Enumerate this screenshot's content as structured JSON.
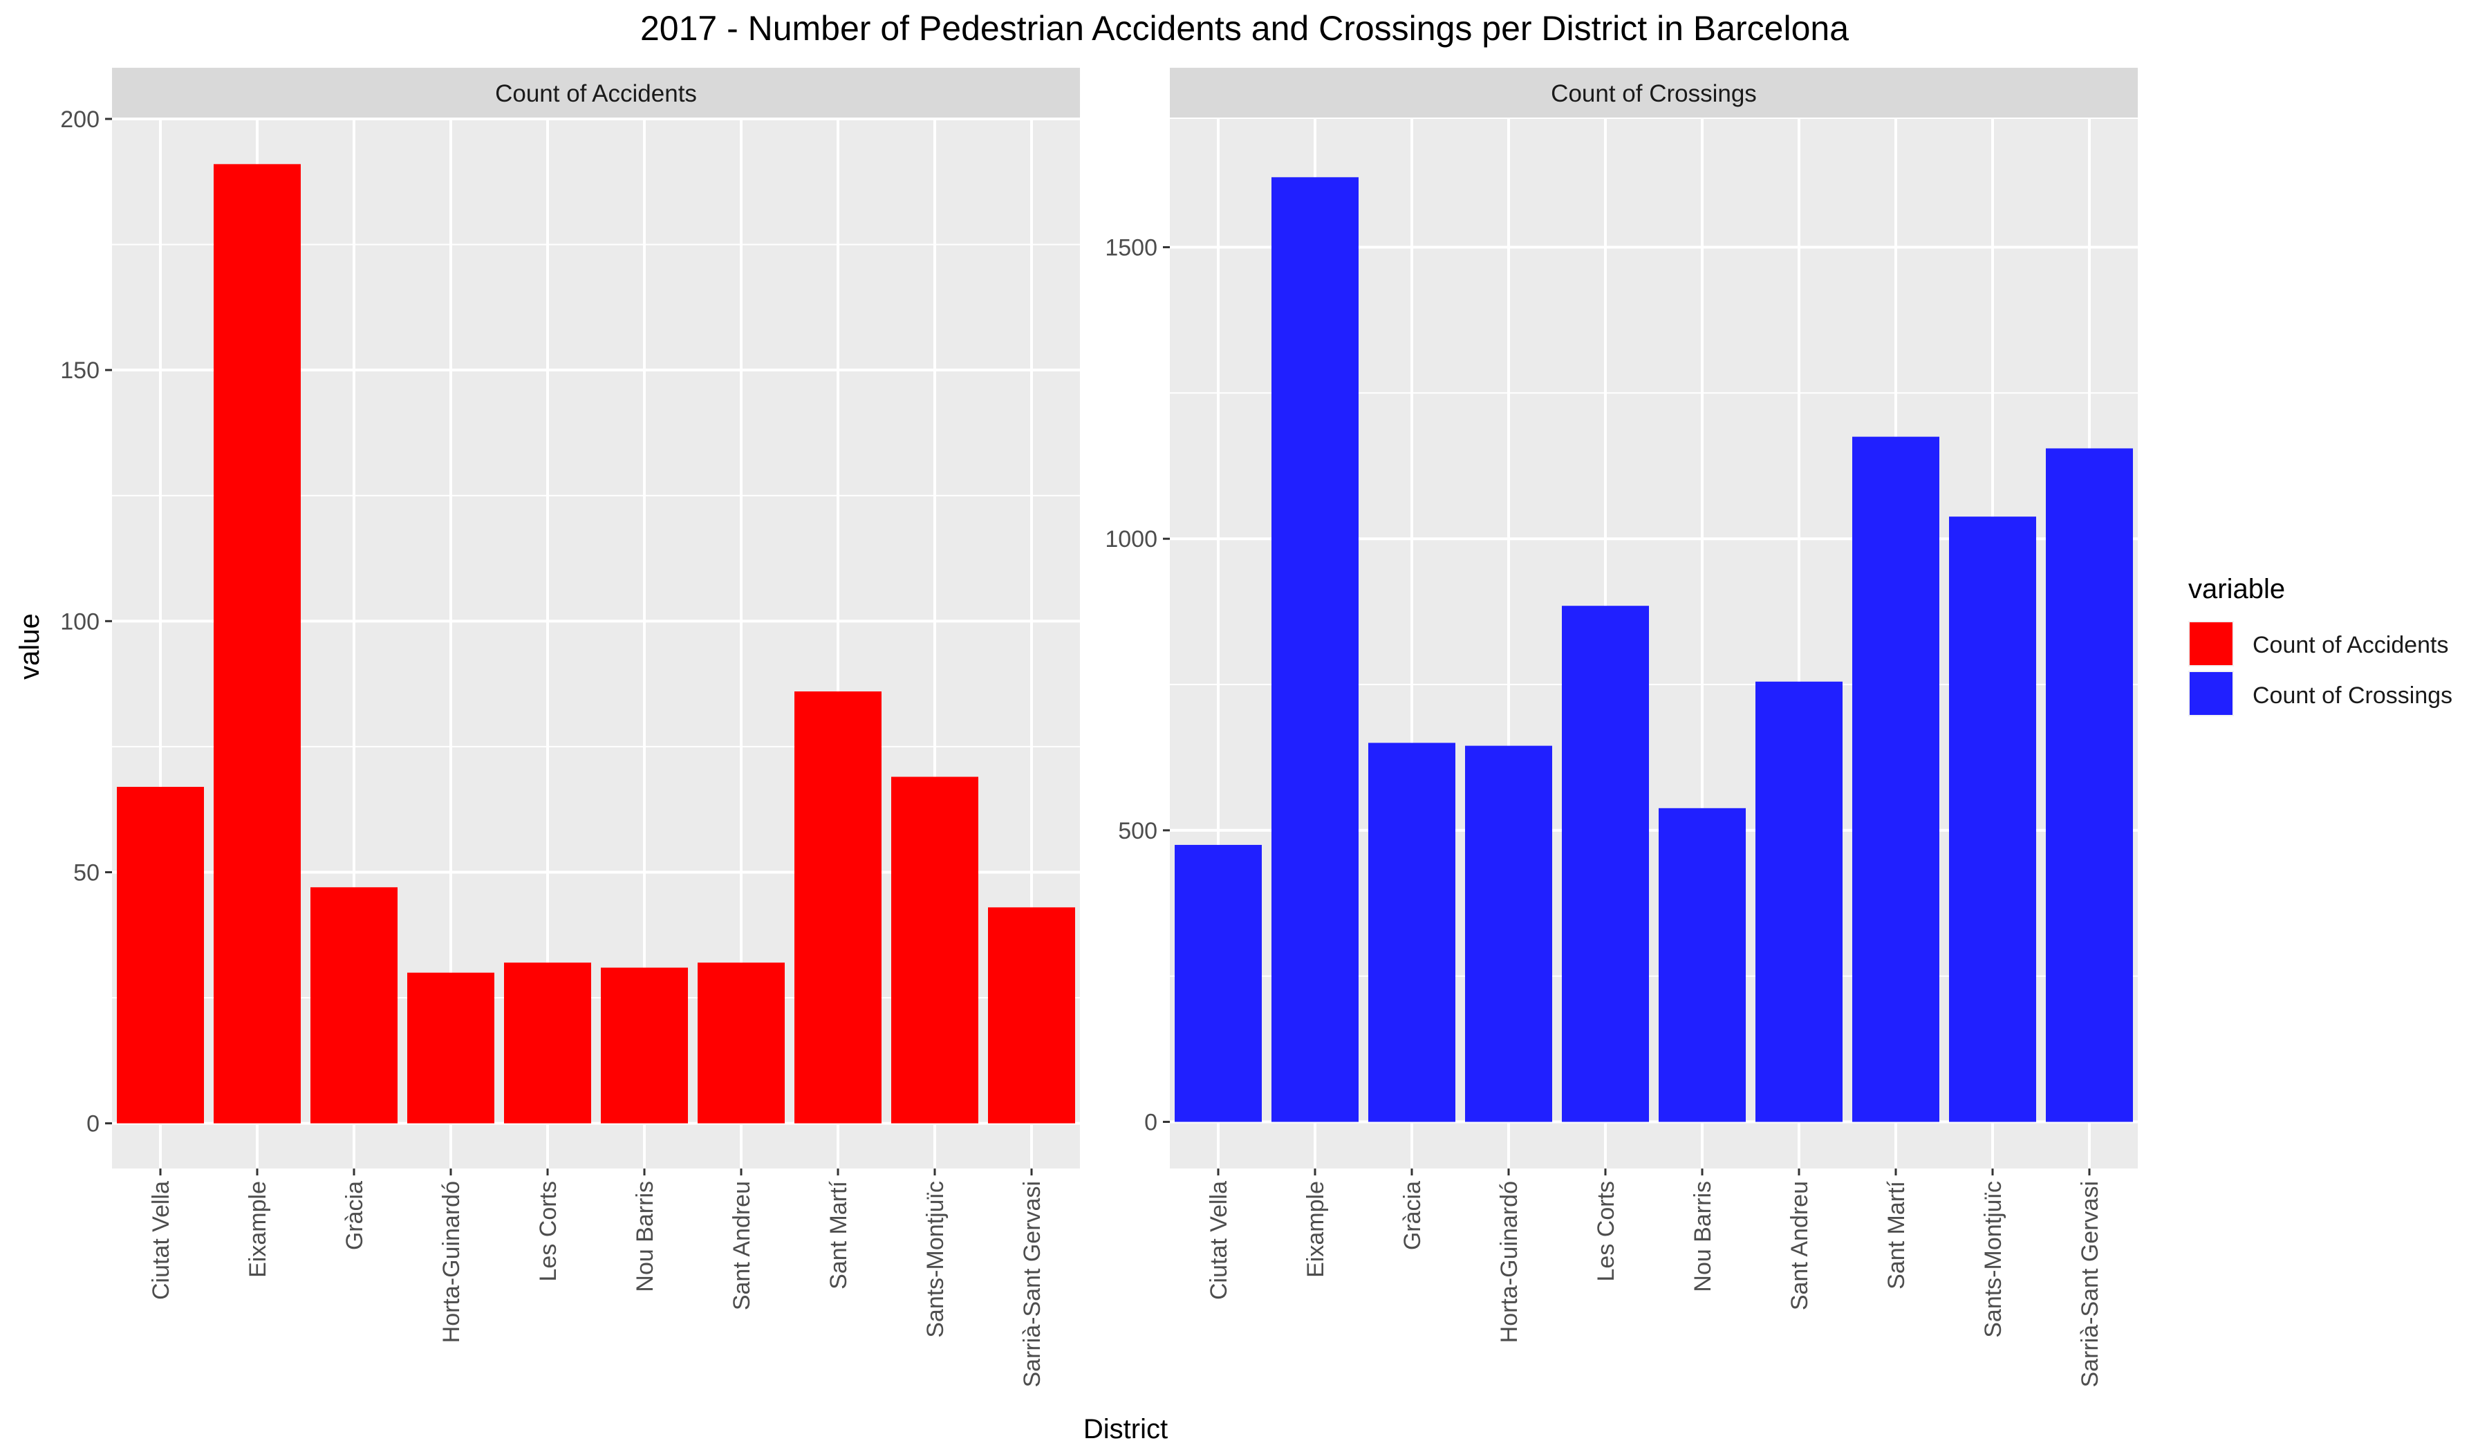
{
  "chart_data": {
    "type": "bar",
    "title": "2017 - Number of Pedestrian Accidents and Crossings per District in Barcelona",
    "xlabel": "District",
    "ylabel": "value",
    "categories": [
      "Ciutat Vella",
      "Eixample",
      "Gràcia",
      "Horta-Guinardó",
      "Les Corts",
      "Nou Barris",
      "Sant Andreu",
      "Sant Martí",
      "Sants-Montjuïc",
      "Sarrià-Sant Gervasi"
    ],
    "grid": true,
    "legend": {
      "title": "variable",
      "position": "right",
      "entries": [
        "Count of Accidents",
        "Count of Crossings"
      ]
    },
    "panels": [
      {
        "strip_label": "Count of Accidents",
        "color": "#ff0000",
        "ylim": [
          -9,
          200
        ],
        "yticks": [
          0,
          50,
          100,
          150,
          200
        ],
        "values": [
          67,
          191,
          47,
          30,
          32,
          31,
          32,
          86,
          69,
          43
        ]
      },
      {
        "strip_label": "Count of Crossings",
        "color": "#2020ff",
        "ylim": [
          -80,
          1720
        ],
        "yticks": [
          0,
          500,
          1000,
          1500
        ],
        "values": [
          475,
          1620,
          650,
          645,
          885,
          538,
          755,
          1175,
          1038,
          1155
        ]
      }
    ]
  }
}
